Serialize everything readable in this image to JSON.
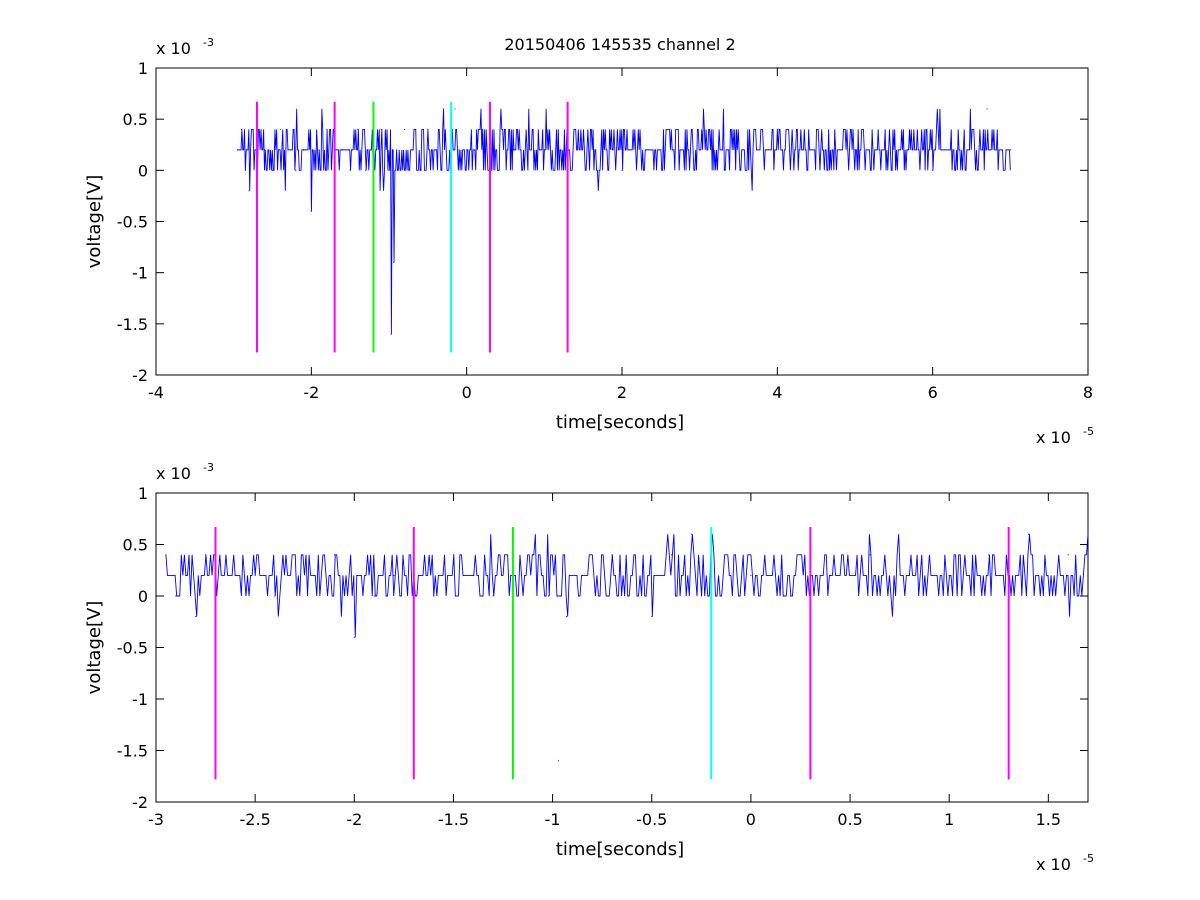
{
  "title": "20150406 145535 channel 2",
  "colors": {
    "signal": "#0000ff",
    "magenta": "#ff00ff",
    "green": "#00ff00",
    "cyan": "#00ffff",
    "axes": "#000000",
    "background": "#ffffff"
  },
  "chart_data": [
    {
      "type": "line",
      "title": "20150406 145535 channel 2",
      "xlabel": "time[seconds]",
      "ylabel": "voltage[V]",
      "x_multiplier": "x 10",
      "x_exponent": "-5",
      "y_multiplier": "x 10",
      "y_exponent": "-3",
      "xlim": [
        -4,
        8
      ],
      "ylim": [
        -2,
        1
      ],
      "xticks": [
        -4,
        -2,
        0,
        2,
        4,
        6,
        8
      ],
      "xtick_labels": [
        "-4",
        "-2",
        "0",
        "2",
        "4",
        "6",
        "8"
      ],
      "yticks": [
        -2,
        -1.5,
        -1,
        -0.5,
        0,
        0.5,
        1
      ],
      "ytick_labels": [
        "-2",
        "-1.5",
        "-1",
        "-0.5",
        "0",
        "0.5",
        "1"
      ],
      "grid": false,
      "signal_range": [
        -2.95,
        7.0
      ],
      "signal_points": [
        [
          -2.95,
          0.2
        ],
        [
          -2.9,
          0.4
        ],
        [
          -2.85,
          0.0
        ],
        [
          -2.8,
          -0.2
        ],
        [
          -2.75,
          0.4
        ],
        [
          -2.7,
          0.0
        ],
        [
          -2.6,
          0.2
        ],
        [
          -2.5,
          0.0
        ],
        [
          -2.4,
          0.4
        ],
        [
          -2.3,
          0.2
        ],
        [
          -2.2,
          0.0
        ],
        [
          -2.1,
          0.2
        ],
        [
          -2.0,
          -0.4
        ],
        [
          -1.9,
          0.2
        ],
        [
          -1.8,
          0.4
        ],
        [
          -1.7,
          0.2
        ],
        [
          -1.6,
          0.2
        ],
        [
          -1.5,
          0.0
        ],
        [
          -1.4,
          0.4
        ],
        [
          -1.3,
          0.0
        ],
        [
          -1.2,
          0.2
        ],
        [
          -1.1,
          0.4
        ],
        [
          -1.0,
          0.0
        ],
        [
          -0.97,
          -1.6
        ],
        [
          -0.94,
          -0.9
        ],
        [
          -0.9,
          0.2
        ],
        [
          -0.8,
          0.4
        ],
        [
          -0.7,
          0.2
        ],
        [
          -0.6,
          0.0
        ],
        [
          -0.5,
          0.4
        ],
        [
          -0.4,
          0.2
        ],
        [
          -0.3,
          0.6
        ],
        [
          -0.25,
          0.0
        ],
        [
          -0.2,
          0.4
        ],
        [
          -0.15,
          0.6
        ],
        [
          -0.1,
          0.2
        ],
        [
          0.0,
          0.2
        ],
        [
          0.2,
          0.4
        ],
        [
          0.4,
          0.0
        ],
        [
          0.6,
          0.2
        ],
        [
          1.0,
          0.2
        ],
        [
          1.4,
          0.4
        ],
        [
          2.0,
          0.0
        ],
        [
          3.0,
          0.2
        ],
        [
          4.0,
          0.4
        ],
        [
          5.0,
          0.2
        ],
        [
          6.0,
          0.0
        ],
        [
          6.7,
          0.6
        ],
        [
          7.0,
          0.2
        ]
      ],
      "markers": [
        {
          "x": -2.7,
          "color": "magenta",
          "ylim": [
            -1.78,
            0.67
          ]
        },
        {
          "x": -1.7,
          "color": "magenta",
          "ylim": [
            -1.78,
            0.67
          ]
        },
        {
          "x": -1.2,
          "color": "green",
          "ylim": [
            -1.78,
            0.67
          ]
        },
        {
          "x": -0.2,
          "color": "cyan",
          "ylim": [
            -1.78,
            0.67
          ]
        },
        {
          "x": 0.3,
          "color": "magenta",
          "ylim": [
            -1.78,
            0.67
          ]
        },
        {
          "x": 1.3,
          "color": "magenta",
          "ylim": [
            -1.78,
            0.67
          ]
        }
      ]
    },
    {
      "type": "line",
      "title": "",
      "xlabel": "time[seconds]",
      "ylabel": "voltage[V]",
      "x_multiplier": "x 10",
      "x_exponent": "-5",
      "y_multiplier": "x 10",
      "y_exponent": "-3",
      "xlim": [
        -3.0,
        1.7
      ],
      "ylim": [
        -2,
        1
      ],
      "xticks": [
        -3,
        -2.5,
        -2,
        -1.5,
        -1,
        -0.5,
        0,
        0.5,
        1,
        1.5
      ],
      "xtick_labels": [
        "-3",
        "-2.5",
        "-2",
        "-1.5",
        "-1",
        "-0.5",
        "0",
        "0.5",
        "1",
        "1.5"
      ],
      "yticks": [
        -2,
        -1.5,
        -1,
        -0.5,
        0,
        0.5,
        1
      ],
      "ytick_labels": [
        "-2",
        "-1.5",
        "-1",
        "-0.5",
        "0",
        "0.5",
        "1"
      ],
      "grid": false,
      "signal_range": [
        -2.95,
        1.7
      ],
      "signal_points": [
        [
          -2.95,
          0.4
        ],
        [
          -2.9,
          0.0
        ],
        [
          -2.85,
          0.2
        ],
        [
          -2.8,
          -0.2
        ],
        [
          -2.75,
          0.4
        ],
        [
          -2.7,
          0.0
        ],
        [
          -2.6,
          0.2
        ],
        [
          -2.5,
          0.2
        ],
        [
          -2.4,
          0.0
        ],
        [
          -2.3,
          0.4
        ],
        [
          -2.2,
          0.2
        ],
        [
          -2.1,
          0.4
        ],
        [
          -2.0,
          -0.4
        ],
        [
          -1.9,
          0.0
        ],
        [
          -1.8,
          0.2
        ],
        [
          -1.7,
          0.2
        ],
        [
          -1.6,
          0.0
        ],
        [
          -1.5,
          0.4
        ],
        [
          -1.4,
          0.2
        ],
        [
          -1.3,
          0.0
        ],
        [
          -1.2,
          0.2
        ],
        [
          -1.1,
          0.4
        ],
        [
          -1.02,
          0.0
        ],
        [
          -0.97,
          -1.6
        ],
        [
          -0.93,
          -0.2
        ],
        [
          -0.85,
          0.2
        ],
        [
          -0.7,
          0.4
        ],
        [
          -0.5,
          -0.2
        ],
        [
          -0.4,
          0.4
        ],
        [
          -0.3,
          0.6
        ],
        [
          -0.25,
          0.0
        ],
        [
          -0.2,
          0.6
        ],
        [
          -0.15,
          0.0
        ],
        [
          0.0,
          0.2
        ],
        [
          0.1,
          0.2
        ],
        [
          0.2,
          0.0
        ],
        [
          0.4,
          0.2
        ],
        [
          0.6,
          0.4
        ],
        [
          0.8,
          0.2
        ],
        [
          1.0,
          0.2
        ],
        [
          1.2,
          0.4
        ],
        [
          1.4,
          0.6
        ],
        [
          1.6,
          0.4
        ],
        [
          1.7,
          0.6
        ]
      ],
      "markers": [
        {
          "x": -2.7,
          "color": "magenta",
          "ylim": [
            -1.78,
            0.67
          ]
        },
        {
          "x": -1.7,
          "color": "magenta",
          "ylim": [
            -1.78,
            0.67
          ]
        },
        {
          "x": -1.2,
          "color": "green",
          "ylim": [
            -1.78,
            0.67
          ]
        },
        {
          "x": -0.2,
          "color": "cyan",
          "ylim": [
            -1.78,
            0.67
          ]
        },
        {
          "x": 0.3,
          "color": "magenta",
          "ylim": [
            -1.78,
            0.67
          ]
        },
        {
          "x": 1.3,
          "color": "magenta",
          "ylim": [
            -1.78,
            0.67
          ]
        }
      ]
    }
  ]
}
